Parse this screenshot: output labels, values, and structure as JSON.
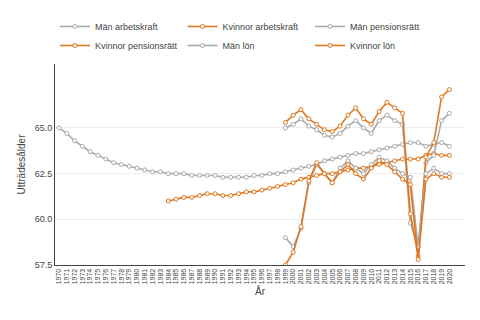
{
  "chart_data": {
    "type": "line",
    "xlabel": "År",
    "ylabel": "Utträdesålder",
    "xlim": [
      1969.5,
      2022
    ],
    "xticks": [
      1970,
      1971,
      1972,
      1973,
      1974,
      1975,
      1976,
      1977,
      1978,
      1979,
      1980,
      1981,
      1982,
      1983,
      1984,
      1985,
      1986,
      1987,
      1988,
      1989,
      1990,
      1991,
      1992,
      1993,
      1994,
      1995,
      1996,
      1997,
      1998,
      1999,
      2000,
      2001,
      2002,
      2003,
      2004,
      2005,
      2006,
      2007,
      2008,
      2009,
      2010,
      2011,
      2012,
      2013,
      2014,
      2015,
      2016,
      2017,
      2018,
      2019,
      2020
    ],
    "ylim": [
      57.5,
      68.5
    ],
    "yticks": [
      57.5,
      {
        "value": 60,
        "label": "60.0"
      },
      62.5,
      {
        "value": 65,
        "label": "65.0"
      }
    ],
    "grid": "y",
    "legend": "top",
    "marker": "circle",
    "series": [
      {
        "name": "Män arbetskraft",
        "color": "#AAAAAA",
        "x": [
          1970,
          1971,
          1972,
          1973,
          1974,
          1975,
          1976,
          1977,
          1978,
          1979,
          1980,
          1981,
          1982,
          1983,
          1984,
          1985,
          1986,
          1987,
          1988,
          1989,
          1990,
          1991,
          1992,
          1993,
          1994,
          1995,
          1996,
          1997,
          1998,
          1999,
          2000,
          2001,
          2002,
          2003,
          2004,
          2005,
          2006,
          2007,
          2008,
          2009,
          2010,
          2011,
          2012,
          2013,
          2014,
          2015,
          2016,
          2017,
          2018,
          2019,
          2020
        ],
        "values": [
          65.0,
          64.7,
          64.3,
          64.0,
          63.7,
          63.5,
          63.3,
          63.1,
          63.0,
          62.9,
          62.8,
          62.7,
          62.6,
          62.6,
          62.5,
          62.5,
          62.5,
          62.4,
          62.4,
          62.4,
          62.4,
          62.3,
          62.3,
          62.3,
          62.3,
          62.4,
          62.4,
          62.5,
          62.5,
          62.6,
          62.7,
          62.8,
          62.9,
          63.0,
          63.2,
          63.3,
          63.4,
          63.5,
          63.6,
          63.6,
          63.7,
          63.8,
          63.9,
          64.0,
          64.1,
          64.2,
          64.2,
          64.0,
          64.1,
          64.2,
          64.0
        ]
      },
      {
        "name": "Kvinnor arbetskraft",
        "color": "#E07820",
        "x": [
          1984,
          1985,
          1986,
          1987,
          1988,
          1989,
          1990,
          1991,
          1992,
          1993,
          1994,
          1995,
          1996,
          1997,
          1998,
          1999,
          2000,
          2001,
          2002,
          2003,
          2004,
          2005,
          2006,
          2007,
          2008,
          2009,
          2010,
          2011,
          2012,
          2013,
          2014,
          2015,
          2016,
          2017,
          2018,
          2019,
          2020
        ],
        "values": [
          61.0,
          61.1,
          61.2,
          61.2,
          61.3,
          61.4,
          61.4,
          61.3,
          61.3,
          61.4,
          61.5,
          61.5,
          61.6,
          61.7,
          61.8,
          61.9,
          62.0,
          62.2,
          62.3,
          62.4,
          62.5,
          62.5,
          62.6,
          62.7,
          62.8,
          62.8,
          62.9,
          63.0,
          63.1,
          63.2,
          63.3,
          63.3,
          63.3,
          63.5,
          63.6,
          63.5,
          63.5
        ]
      },
      {
        "name": "Män pensionsrätt",
        "color": "#AAAAAA",
        "x": [
          1999,
          2000,
          2001,
          2002,
          2003,
          2004,
          2005,
          2006,
          2007,
          2008,
          2009,
          2010,
          2011,
          2012,
          2013,
          2014,
          2015,
          2016,
          2017,
          2018,
          2019,
          2020
        ],
        "values": [
          65.0,
          65.2,
          65.5,
          65.1,
          64.9,
          64.6,
          64.5,
          64.7,
          65.1,
          65.4,
          65.0,
          64.7,
          65.4,
          65.7,
          65.4,
          65.2,
          59.8,
          58.5,
          63.1,
          63.5,
          65.4,
          65.8
        ]
      },
      {
        "name": "Kvinnor pensionsrätt",
        "color": "#E07820",
        "x": [
          1999,
          2000,
          2001,
          2002,
          2003,
          2004,
          2005,
          2006,
          2007,
          2008,
          2009,
          2010,
          2011,
          2012,
          2013,
          2014,
          2015,
          2016,
          2017,
          2018,
          2019,
          2020
        ],
        "values": [
          65.3,
          65.7,
          66.0,
          65.5,
          65.2,
          64.9,
          64.8,
          65.1,
          65.7,
          66.1,
          65.5,
          65.2,
          65.9,
          66.4,
          66.1,
          65.8,
          60.3,
          58.0,
          63.4,
          64.2,
          66.7,
          67.1
        ]
      },
      {
        "name": "Män lön",
        "color": "#AAAAAA",
        "x": [
          1999,
          2000,
          2001,
          2002,
          2003,
          2004,
          2005,
          2006,
          2007,
          2008,
          2009,
          2010,
          2011,
          2012,
          2013,
          2014,
          2015,
          2016,
          2017,
          2018,
          2019,
          2020
        ],
        "values": [
          59.0,
          58.5,
          59.5,
          62.0,
          63.0,
          62.5,
          62.0,
          62.8,
          63.2,
          62.8,
          62.5,
          63.0,
          63.4,
          63.2,
          62.8,
          62.5,
          62.3,
          58.5,
          62.5,
          62.8,
          62.5,
          62.5
        ]
      },
      {
        "name": "Kvinnor lön",
        "color": "#E07820",
        "x": [
          1999,
          2000,
          2001,
          2002,
          2003,
          2004,
          2005,
          2006,
          2007,
          2008,
          2009,
          2010,
          2011,
          2012,
          2013,
          2014,
          2015,
          2016,
          2017,
          2018,
          2019,
          2020
        ],
        "values": [
          57.5,
          58.2,
          59.6,
          62.1,
          63.1,
          62.5,
          62.0,
          62.6,
          63.0,
          62.5,
          62.2,
          62.8,
          63.2,
          63.0,
          62.6,
          62.2,
          61.9,
          57.8,
          62.2,
          62.5,
          62.3,
          62.3
        ]
      }
    ]
  }
}
